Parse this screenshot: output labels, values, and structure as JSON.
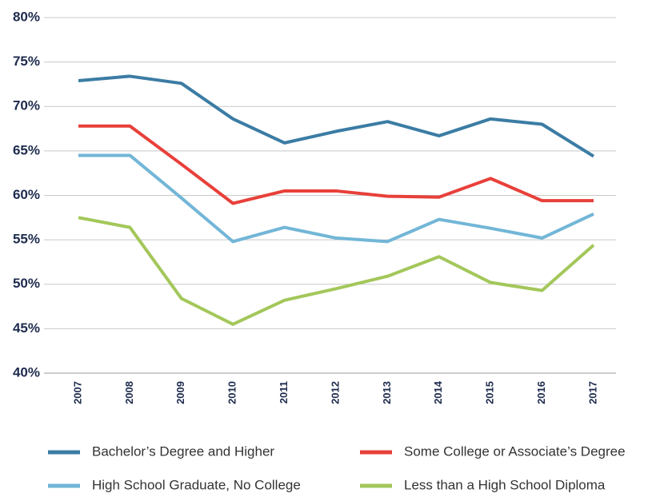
{
  "chart_data": {
    "type": "line",
    "categories": [
      "2007",
      "2008",
      "2009",
      "2010",
      "2011",
      "2012",
      "2013",
      "2014",
      "2015",
      "2016",
      "2017"
    ],
    "series": [
      {
        "name": "Bachelor’s Degree and Higher",
        "color": "#3b7ca4",
        "values": [
          72.9,
          73.4,
          72.6,
          68.6,
          65.9,
          67.2,
          68.3,
          66.7,
          68.6,
          68.0,
          64.4
        ]
      },
      {
        "name": "Some College or Associate’s Degree",
        "color": "#e8403a",
        "values": [
          67.8,
          67.8,
          63.5,
          59.1,
          60.5,
          60.5,
          59.9,
          59.8,
          61.9,
          59.4,
          59.4
        ]
      },
      {
        "name": "High School Graduate, No College",
        "color": "#72b6d7",
        "values": [
          64.5,
          64.5,
          59.7,
          54.8,
          56.4,
          55.2,
          54.8,
          57.3,
          56.3,
          55.2,
          57.9
        ]
      },
      {
        "name": "Less than a High School Diploma",
        "color": "#a3c75a",
        "values": [
          57.5,
          56.4,
          48.4,
          45.5,
          48.2,
          49.5,
          50.9,
          53.1,
          50.2,
          49.3,
          54.4
        ]
      }
    ],
    "ylim": [
      40,
      80
    ],
    "yticks": [
      {
        "value": 40,
        "label": "40%"
      },
      {
        "value": 45,
        "label": "45%"
      },
      {
        "value": 50,
        "label": "50%"
      },
      {
        "value": 55,
        "label": "55%"
      },
      {
        "value": 60,
        "label": "60%"
      },
      {
        "value": 65,
        "label": "65%"
      },
      {
        "value": 70,
        "label": "70%"
      },
      {
        "value": 75,
        "label": "75%"
      },
      {
        "value": 80,
        "label": "80%"
      }
    ],
    "grid": true
  }
}
